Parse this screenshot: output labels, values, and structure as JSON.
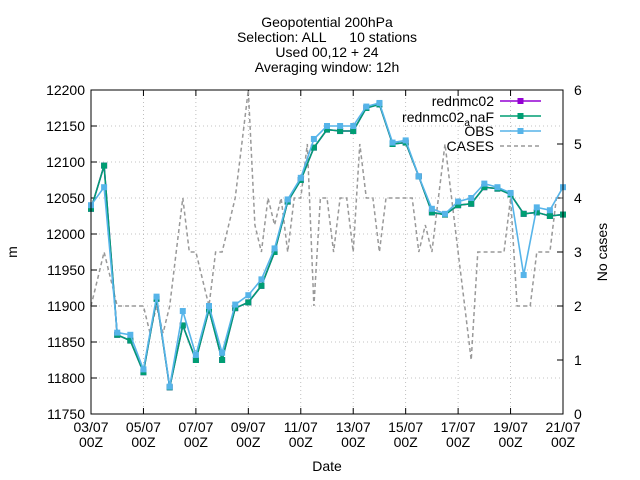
{
  "chart_data": {
    "type": "line",
    "title_lines": [
      "Geopotential 200hPa",
      "Selection: ALL      10 stations",
      "Used 00,12 + 24",
      "Averaging window: 12h"
    ],
    "xlabel": "Date",
    "ylabel": "m",
    "y2label": "No cases",
    "ylim": [
      11750,
      12200
    ],
    "y2lim": [
      0,
      6
    ],
    "y_ticks": [
      11750,
      11800,
      11850,
      11900,
      11950,
      12000,
      12050,
      12100,
      12150,
      12200
    ],
    "y2_ticks": [
      0,
      1,
      2,
      3,
      4,
      5,
      6
    ],
    "x_ticks": [
      {
        "day": 0,
        "label1": "03/07",
        "label2": "00Z"
      },
      {
        "day": 2,
        "label1": "05/07",
        "label2": "00Z"
      },
      {
        "day": 4,
        "label1": "07/07",
        "label2": "00Z"
      },
      {
        "day": 6,
        "label1": "09/07",
        "label2": "00Z"
      },
      {
        "day": 8,
        "label1": "11/07",
        "label2": "00Z"
      },
      {
        "day": 10,
        "label1": "13/07",
        "label2": "00Z"
      },
      {
        "day": 12,
        "label1": "15/07",
        "label2": "00Z"
      },
      {
        "day": 14,
        "label1": "17/07",
        "label2": "00Z"
      },
      {
        "day": 16,
        "label1": "19/07",
        "label2": "00Z"
      },
      {
        "day": 18,
        "label1": "21/07",
        "label2": "00Z"
      }
    ],
    "xlim_days": [
      0,
      18
    ],
    "grid": true,
    "legend_position": "top-right",
    "colors": {
      "rednmc02": "#9400d3",
      "rednmc02_naF": "#009e73",
      "OBS": "#56b4e9",
      "CASES": "#999999"
    },
    "series": [
      {
        "name": "rednmc02",
        "legend_label": "rednmc02",
        "axis": "y",
        "style": "line-points",
        "x": [
          0,
          0.5,
          1,
          1.5,
          2,
          2.5,
          3,
          3.5,
          4,
          4.5,
          5,
          5.5,
          6,
          6.5,
          7,
          7.5,
          8,
          8.5,
          9,
          9.5,
          10,
          10.5,
          11,
          11.5,
          12,
          12.5,
          13,
          13.5,
          14,
          14.5,
          15,
          15.5,
          16,
          16.5,
          17,
          17.5,
          18
        ],
        "values": [
          12035,
          12095,
          11860,
          11852,
          11808,
          11910,
          11787,
          11873,
          11825,
          11895,
          11825,
          11897,
          11905,
          11928,
          11975,
          12045,
          12075,
          12120,
          12145,
          12143,
          12143,
          12175,
          12180,
          12125,
          12127,
          12080,
          12030,
          12027,
          12040,
          12042,
          12065,
          12063,
          12055,
          12028,
          12030,
          12025,
          12027
        ]
      },
      {
        "name": "rednmc02_naF",
        "legend_label_main": "rednmc02",
        "legend_label_sub": "a",
        "legend_label_tail": "naF",
        "axis": "y",
        "style": "line-points",
        "x": [
          0,
          0.5,
          1,
          1.5,
          2,
          2.5,
          3,
          3.5,
          4,
          4.5,
          5,
          5.5,
          6,
          6.5,
          7,
          7.5,
          8,
          8.5,
          9,
          9.5,
          10,
          10.5,
          11,
          11.5,
          12,
          12.5,
          13,
          13.5,
          14,
          14.5,
          15,
          15.5,
          16,
          16.5,
          17,
          17.5,
          18
        ],
        "values": [
          12035,
          12095,
          11860,
          11852,
          11808,
          11910,
          11787,
          11873,
          11825,
          11895,
          11825,
          11897,
          11905,
          11928,
          11975,
          12045,
          12075,
          12120,
          12145,
          12143,
          12143,
          12175,
          12180,
          12125,
          12127,
          12080,
          12030,
          12027,
          12040,
          12042,
          12065,
          12063,
          12055,
          12028,
          12030,
          12025,
          12027
        ]
      },
      {
        "name": "OBS",
        "legend_label": "OBS",
        "axis": "y",
        "style": "line-points",
        "x": [
          0,
          0.5,
          1,
          1.5,
          2,
          2.5,
          3,
          3.5,
          4,
          4.5,
          5,
          5.5,
          6,
          6.5,
          7,
          7.5,
          8,
          8.5,
          9,
          9.5,
          10,
          10.5,
          11,
          11.5,
          12,
          12.5,
          13,
          13.5,
          14,
          14.5,
          15,
          15.5,
          16,
          16.5,
          17,
          17.5,
          18
        ],
        "values": [
          12040,
          12065,
          11863,
          11860,
          11812,
          11913,
          11788,
          11893,
          11832,
          11900,
          11835,
          11902,
          11915,
          11937,
          11980,
          12048,
          12078,
          12132,
          12150,
          12150,
          12150,
          12177,
          12182,
          12127,
          12130,
          12080,
          12035,
          12028,
          12045,
          12050,
          12070,
          12065,
          12057,
          11943,
          12037,
          12033,
          12065
        ]
      },
      {
        "name": "CASES",
        "legend_label": "CASES",
        "axis": "y2",
        "style": "dashed-line",
        "x": [
          0,
          0.25,
          0.5,
          0.75,
          1,
          1.25,
          1.5,
          1.75,
          2,
          2.25,
          2.5,
          2.75,
          3,
          3.25,
          3.5,
          3.75,
          4,
          4.25,
          4.5,
          4.75,
          5,
          5.25,
          5.5,
          5.75,
          6,
          6.25,
          6.5,
          6.75,
          7,
          7.25,
          7.5,
          7.75,
          8,
          8.25,
          8.5,
          8.75,
          9,
          9.25,
          9.5,
          9.75,
          10,
          10.25,
          10.5,
          10.75,
          11,
          11.25,
          11.5,
          11.75,
          12,
          12.25,
          12.5,
          12.75,
          13,
          13.25,
          13.5,
          13.75,
          14,
          14.25,
          14.5,
          14.75,
          15,
          15.25,
          15.5,
          15.75,
          16,
          16.25,
          16.5,
          16.75,
          17,
          17.25,
          17.5,
          17.75,
          18
        ],
        "values": [
          2,
          2.5,
          3,
          2.5,
          2,
          2,
          2,
          2,
          2,
          1.5,
          2,
          1.5,
          2,
          3,
          4,
          3,
          3,
          2.5,
          2,
          3,
          3,
          3.5,
          4,
          5,
          6,
          3.5,
          3,
          4,
          3.5,
          4,
          3,
          4,
          4,
          5,
          2,
          4,
          4,
          3,
          4,
          4,
          3,
          5,
          4,
          4,
          3,
          4,
          4,
          4,
          4,
          4,
          3,
          3.5,
          3,
          4,
          5,
          4,
          3,
          2,
          1,
          3,
          3,
          3,
          3,
          3,
          4,
          2,
          2,
          2,
          3,
          3,
          3,
          4,
          4
        ]
      }
    ]
  }
}
